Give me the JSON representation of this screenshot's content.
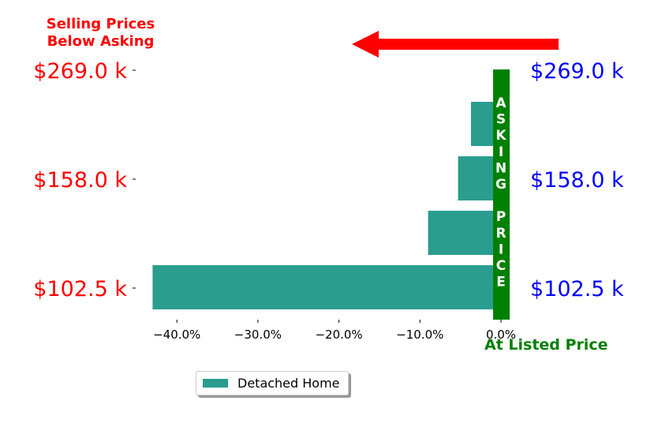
{
  "header": {
    "line1": "Selling Prices",
    "line2": "Below Asking"
  },
  "footer_label": "At Listed Price",
  "colors": {
    "bar": "#2a9d8f",
    "asking_band": "#008000",
    "left_labels": "#ff0000",
    "right_labels": "#0000ff",
    "arrow": "#ff0000"
  },
  "asking_band_text": [
    "A",
    "S",
    "K",
    "I",
    "N",
    "G",
    "",
    "P",
    "R",
    "I",
    "C",
    "E"
  ],
  "chart_data": {
    "type": "bar",
    "orientation": "horizontal",
    "series": [
      {
        "name": "Detached Home",
        "values": [
          -43,
          -9,
          -5.3,
          -3.7
        ]
      }
    ],
    "y_tick_labels_left": [
      "$102.5 k",
      "$158.0 k",
      "$269.0 k"
    ],
    "y_tick_labels_right": [
      "$102.5 k",
      "$158.0 k",
      "$269.0 k"
    ],
    "x_ticks": [
      -40,
      -30,
      -20,
      -10,
      0
    ],
    "x_tick_labels": [
      "−40.0%",
      "−30.0%",
      "−20.0%",
      "−10.0%",
      "0.0%"
    ],
    "xlim": [
      -44,
      1
    ],
    "legend": "below",
    "grid": false
  }
}
